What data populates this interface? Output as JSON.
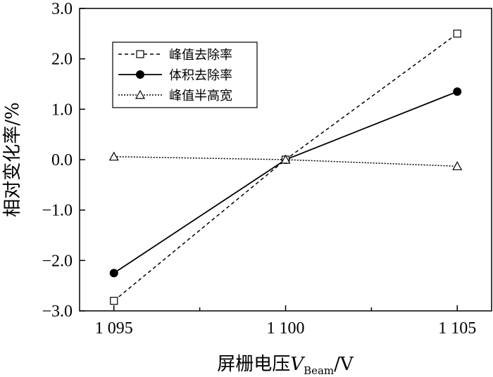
{
  "chart_data": {
    "type": "line",
    "x": [
      1095,
      1100,
      1105
    ],
    "x_tick_labels": [
      "1 095",
      "1 100",
      "1 105"
    ],
    "xlim": [
      1094,
      1106
    ],
    "ylim": [
      -3.0,
      3.0
    ],
    "y_ticks": [
      -3.0,
      -2.0,
      -1.0,
      0.0,
      1.0,
      2.0,
      3.0
    ],
    "y_tick_labels": [
      "−3.0",
      "−2.0",
      "−1.0",
      "0.0",
      "1.0",
      "2.0",
      "3.0"
    ],
    "xlabel": {
      "main": "屏栅电压",
      "var": "V",
      "sub": "Beam",
      "unit": "/V"
    },
    "ylabel": "相对变化率/%",
    "grid": false,
    "legend_position": "top-left",
    "series": [
      {
        "name": "峰值去除率",
        "values": [
          -2.8,
          0.0,
          2.5
        ],
        "marker": "square-open",
        "line": "dashed",
        "color": "#000000"
      },
      {
        "name": "体积去除率",
        "values": [
          -2.25,
          0.0,
          1.35
        ],
        "marker": "circle-filled",
        "line": "solid",
        "color": "#000000"
      },
      {
        "name": "峰值半高宽",
        "values": [
          0.06,
          0.0,
          -0.13
        ],
        "marker": "triangle-open",
        "line": "dotted",
        "color": "#000000"
      }
    ]
  }
}
